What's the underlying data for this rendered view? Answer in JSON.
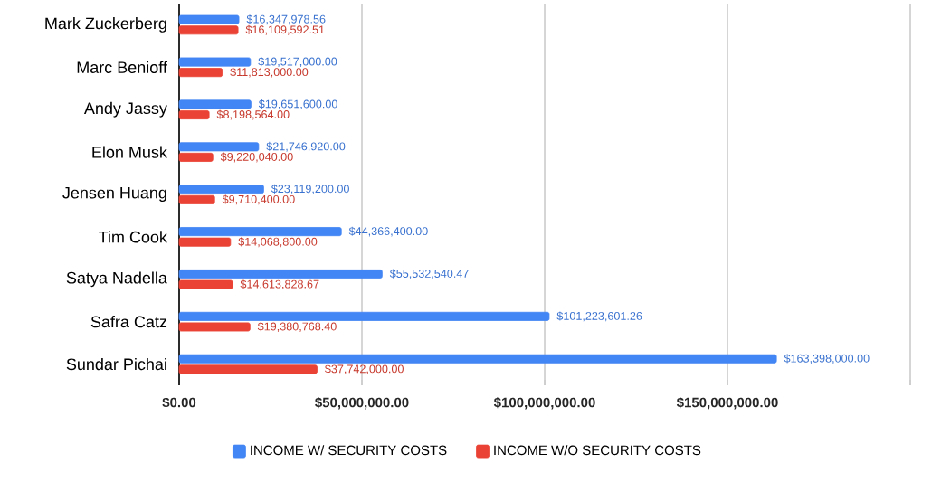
{
  "chart_data": {
    "type": "bar",
    "orientation": "horizontal",
    "categories": [
      "Mark Zuckerberg",
      "Marc Benioff",
      "Andy Jassy",
      "Elon Musk",
      "Jensen Huang",
      "Tim Cook",
      "Satya Nadella",
      "Safra Catz",
      "Sundar Pichai"
    ],
    "series": [
      {
        "name": "INCOME W/ SECURITY COSTS",
        "color": "#4285f4",
        "values": [
          16347978.56,
          19517000,
          19651600,
          21746920,
          23119200,
          44366400,
          55532540.47,
          101223601.26,
          163398000
        ],
        "value_labels": [
          "$16,347,978.56",
          "$19,517,000.00",
          "$19,651,600.00",
          "$21,746,920.00",
          "$23,119,200.00",
          "$44,366,400.00",
          "$55,532,540.47",
          "$101,223,601.26",
          "$163,398,000.00"
        ]
      },
      {
        "name": "INCOME W/O SECURITY COSTS",
        "color": "#ea4335",
        "values": [
          16109592.51,
          11813000,
          8198564,
          9220040,
          9710400,
          14068800,
          14613828.67,
          19380768.4,
          37742000
        ],
        "value_labels": [
          "$16,109,592.51",
          "$11,813,000.00",
          "$8,198,564.00",
          "$9,220,040.00",
          "$9,710,400.00",
          "$14,068,800.00",
          "$14,613,828.67",
          "$19,380,768.40",
          "$37,742,000.00"
        ]
      }
    ],
    "xlim": [
      0,
      200000000
    ],
    "xticks": [
      {
        "value": 0,
        "label": "$0.00"
      },
      {
        "value": 50000000,
        "label": "$50,000,000.00"
      },
      {
        "value": 100000000,
        "label": "$100,000,000.00"
      },
      {
        "value": 150000000,
        "label": "$150,000,000.00"
      },
      {
        "value": 200000000,
        "label": null
      }
    ],
    "grid": "x",
    "legend": "bottom"
  }
}
